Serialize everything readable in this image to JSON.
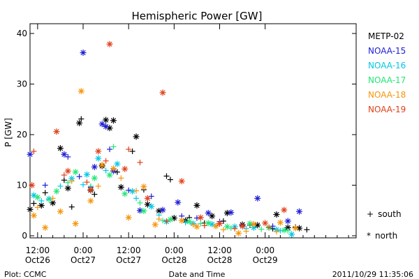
{
  "chart_data": {
    "type": "scatter",
    "title": "Hemispheric Power [GW]",
    "ylabel": "P [GW]",
    "xlabel": "Date and Time",
    "ylim": [
      0,
      42
    ],
    "xlim": [
      "2011-10-26 10:00",
      "2011-10-30 00:00"
    ],
    "yticks": [
      "0",
      "10",
      "20",
      "30",
      "40"
    ],
    "xticks": [
      {
        "time": "2011-10-26 12:00",
        "line1": "12:00",
        "line2": "Oct26"
      },
      {
        "time": "2011-10-27 00:00",
        "line1": "0:00",
        "line2": "Oct27"
      },
      {
        "time": "2011-10-27 12:00",
        "line1": "12:00",
        "line2": "Oct27"
      },
      {
        "time": "2011-10-28 00:00",
        "line1": "0:00",
        "line2": "Oct28"
      },
      {
        "time": "2011-10-28 12:00",
        "line1": "12:00",
        "line2": "Oct28"
      },
      {
        "time": "2011-10-29 00:00",
        "line1": "0:00",
        "line2": "Oct29"
      }
    ],
    "grid": false,
    "legend_position": "right",
    "hemisphere_legend": [
      {
        "symbol": "+",
        "label": "south"
      },
      {
        "symbol": "*",
        "label": "north"
      }
    ],
    "footer_left": "Plot: CCMC",
    "footer_right": "2011/10/29 11:35:06",
    "series": [
      {
        "name": "METP-02",
        "color": "#000000",
        "north": [
          [
            "2011-10-26 10:00",
            5.2
          ],
          [
            "2011-10-26 13:00",
            6.0
          ],
          [
            "2011-10-26 16:00",
            6.5
          ],
          [
            "2011-10-26 18:00",
            17.3
          ],
          [
            "2011-10-26 20:00",
            9.4
          ],
          [
            "2011-10-26 23:00",
            22.3
          ],
          [
            "2011-10-27 02:00",
            9.0
          ],
          [
            "2011-10-27 05:00",
            13.8
          ],
          [
            "2011-10-27 06:00",
            22.9
          ],
          [
            "2011-10-27 07:00",
            21.3
          ],
          [
            "2011-10-27 08:00",
            22.8
          ],
          [
            "2011-10-27 10:00",
            9.6
          ],
          [
            "2011-10-27 14:00",
            19.6
          ],
          [
            "2011-10-27 17:00",
            6.2
          ],
          [
            "2011-10-27 20:00",
            4.9
          ],
          [
            "2011-10-28 00:00",
            3.5
          ],
          [
            "2011-10-28 03:00",
            3.0
          ],
          [
            "2011-10-28 06:00",
            6.0
          ],
          [
            "2011-10-28 10:00",
            3.9
          ],
          [
            "2011-10-28 14:00",
            4.5
          ],
          [
            "2011-10-28 18:00",
            2.2
          ],
          [
            "2011-10-28 22:00",
            2.1
          ],
          [
            "2011-10-29 03:00",
            4.2
          ],
          [
            "2011-10-29 06:00",
            1.6
          ],
          [
            "2011-10-29 09:00",
            1.5
          ]
        ],
        "south": [
          [
            "2011-10-26 11:00",
            6.4
          ],
          [
            "2011-10-26 14:00",
            8.5
          ],
          [
            "2011-10-26 19:00",
            11.0
          ],
          [
            "2011-10-26 21:00",
            5.7
          ],
          [
            "2011-10-26 23:30",
            23.1
          ],
          [
            "2011-10-27 03:00",
            8.2
          ],
          [
            "2011-10-27 09:00",
            12.6
          ],
          [
            "2011-10-27 13:00",
            16.7
          ],
          [
            "2011-10-27 16:00",
            9.1
          ],
          [
            "2011-10-27 22:00",
            11.8
          ],
          [
            "2011-10-27 23:00",
            11.1
          ],
          [
            "2011-10-28 04:00",
            3.6
          ],
          [
            "2011-10-28 08:00",
            2.5
          ],
          [
            "2011-10-28 13:00",
            2.9
          ],
          [
            "2011-10-28 20:00",
            2.1
          ],
          [
            "2011-10-29 02:00",
            1.4
          ],
          [
            "2011-10-29 08:00",
            1.7
          ],
          [
            "2011-10-29 11:00",
            1.2
          ]
        ]
      },
      {
        "name": "NOAA-15",
        "color": "#1c1cd6",
        "north": [
          [
            "2011-10-26 10:00",
            16.1
          ],
          [
            "2011-10-26 19:00",
            16.1
          ],
          [
            "2011-10-27 00:00",
            36.2
          ],
          [
            "2011-10-27 03:00",
            13.6
          ],
          [
            "2011-10-27 05:00",
            22.1
          ],
          [
            "2011-10-27 06:00",
            21.6
          ],
          [
            "2011-10-27 08:00",
            12.8
          ],
          [
            "2011-10-27 15:00",
            5.0
          ],
          [
            "2011-10-27 21:00",
            5.1
          ],
          [
            "2011-10-28 01:00",
            6.6
          ],
          [
            "2011-10-28 09:00",
            4.5
          ],
          [
            "2011-10-28 15:00",
            4.6
          ],
          [
            "2011-10-28 22:00",
            7.4
          ],
          [
            "2011-10-29 06:00",
            2.9
          ],
          [
            "2011-10-29 09:00",
            4.8
          ]
        ],
        "south": [
          [
            "2011-10-26 14:00",
            10.0
          ],
          [
            "2011-10-26 20:00",
            15.6
          ],
          [
            "2011-10-26 23:00",
            11.7
          ],
          [
            "2011-10-27 02:00",
            9.6
          ],
          [
            "2011-10-27 07:00",
            17.1
          ],
          [
            "2011-10-27 12:00",
            9.0
          ],
          [
            "2011-10-27 18:00",
            7.8
          ],
          [
            "2011-10-28 02:00",
            3.9
          ],
          [
            "2011-10-28 06:00",
            3.5
          ],
          [
            "2011-10-28 12:00",
            2.8
          ],
          [
            "2011-10-28 18:00",
            2.0
          ],
          [
            "2011-10-29 02:00",
            1.9
          ]
        ]
      },
      {
        "name": "NOAA-16",
        "color": "#00c8e6",
        "north": [
          [
            "2011-10-26 11:00",
            8.0
          ],
          [
            "2011-10-26 15:00",
            7.3
          ],
          [
            "2011-10-26 21:00",
            11.3
          ],
          [
            "2011-10-27 01:00",
            12.1
          ],
          [
            "2011-10-27 04:00",
            15.3
          ],
          [
            "2011-10-27 09:00",
            14.2
          ],
          [
            "2011-10-27 13:00",
            8.8
          ],
          [
            "2011-10-27 18:00",
            5.8
          ],
          [
            "2011-10-27 22:00",
            2.8
          ],
          [
            "2011-10-28 05:00",
            2.4
          ],
          [
            "2011-10-28 10:00",
            2.3
          ],
          [
            "2011-10-28 16:00",
            1.8
          ],
          [
            "2011-10-28 21:00",
            1.6
          ],
          [
            "2011-10-29 03:00",
            1.2
          ],
          [
            "2011-10-29 07:00",
            0.3
          ]
        ],
        "south": [
          [
            "2011-10-26 13:00",
            6.9
          ],
          [
            "2011-10-26 18:00",
            9.8
          ],
          [
            "2011-10-27 00:00",
            10.1
          ],
          [
            "2011-10-27 06:00",
            12.9
          ],
          [
            "2011-10-27 14:00",
            7.4
          ],
          [
            "2011-10-27 20:00",
            4.1
          ],
          [
            "2011-10-28 03:00",
            2.6
          ],
          [
            "2011-10-28 11:00",
            1.9
          ],
          [
            "2011-10-28 19:00",
            1.4
          ],
          [
            "2011-10-29 04:00",
            1.0
          ]
        ]
      },
      {
        "name": "NOAA-17",
        "color": "#22e676",
        "north": [
          [
            "2011-10-26 12:00",
            7.6
          ],
          [
            "2011-10-26 17:00",
            8.8
          ],
          [
            "2011-10-26 22:00",
            12.6
          ],
          [
            "2011-10-27 03:00",
            11.4
          ],
          [
            "2011-10-27 07:00",
            12.0
          ],
          [
            "2011-10-27 11:00",
            8.3
          ],
          [
            "2011-10-27 16:00",
            4.9
          ],
          [
            "2011-10-27 23:00",
            3.2
          ],
          [
            "2011-10-28 04:00",
            2.8
          ],
          [
            "2011-10-28 09:00",
            2.5
          ],
          [
            "2011-10-28 14:00",
            1.8
          ],
          [
            "2011-10-28 20:00",
            2.4
          ],
          [
            "2011-10-29 01:00",
            1.6
          ],
          [
            "2011-10-29 05:00",
            1.1
          ]
        ],
        "south": [
          [
            "2011-10-26 15:00",
            7.1
          ],
          [
            "2011-10-26 20:00",
            10.5
          ],
          [
            "2011-10-27 02:00",
            9.8
          ],
          [
            "2011-10-27 08:00",
            17.6
          ],
          [
            "2011-10-27 15:00",
            6.5
          ],
          [
            "2011-10-27 21:00",
            3.0
          ],
          [
            "2011-10-28 07:00",
            2.4
          ],
          [
            "2011-10-28 15:00",
            1.5
          ],
          [
            "2011-10-28 23:00",
            1.3
          ],
          [
            "2011-10-29 06:00",
            1.0
          ]
        ]
      },
      {
        "name": "NOAA-18",
        "color": "#f5960a",
        "north": [
          [
            "2011-10-26 11:00",
            4.0
          ],
          [
            "2011-10-26 14:00",
            1.6
          ],
          [
            "2011-10-26 18:00",
            4.8
          ],
          [
            "2011-10-26 22:00",
            2.4
          ],
          [
            "2011-10-26 23:30",
            28.6
          ],
          [
            "2011-10-27 02:00",
            6.9
          ],
          [
            "2011-10-27 05:00",
            14.0
          ],
          [
            "2011-10-27 08:00",
            13.3
          ],
          [
            "2011-10-27 12:00",
            3.6
          ],
          [
            "2011-10-27 16:00",
            9.7
          ],
          [
            "2011-10-27 19:00",
            2.2
          ],
          [
            "2011-10-28 02:00",
            3.0
          ],
          [
            "2011-10-28 06:00",
            1.8
          ],
          [
            "2011-10-28 11:00",
            1.9
          ],
          [
            "2011-10-28 17:00",
            0.5
          ],
          [
            "2011-10-28 21:00",
            2.3
          ],
          [
            "2011-10-29 04:00",
            2.6
          ],
          [
            "2011-10-29 08:00",
            1.5
          ]
        ],
        "south": [
          [
            "2011-10-26 12:00",
            5.6
          ],
          [
            "2011-10-26 16:00",
            7.4
          ],
          [
            "2011-10-26 21:00",
            10.8
          ],
          [
            "2011-10-27 04:00",
            9.8
          ],
          [
            "2011-10-27 10:00",
            11.4
          ],
          [
            "2011-10-27 14:00",
            8.9
          ],
          [
            "2011-10-27 20:00",
            3.3
          ],
          [
            "2011-10-28 05:00",
            2.2
          ],
          [
            "2011-10-28 13:00",
            1.2
          ],
          [
            "2011-10-28 19:00",
            0.9
          ],
          [
            "2011-10-29 03:00",
            0.8
          ]
        ]
      },
      {
        "name": "NOAA-19",
        "color": "#e0401a",
        "north": [
          [
            "2011-10-26 10:30",
            10.0
          ],
          [
            "2011-10-26 17:00",
            20.6
          ],
          [
            "2011-10-26 20:00",
            12.8
          ],
          [
            "2011-10-27 02:00",
            9.1
          ],
          [
            "2011-10-27 04:00",
            16.7
          ],
          [
            "2011-10-27 07:00",
            37.9
          ],
          [
            "2011-10-27 11:00",
            13.2
          ],
          [
            "2011-10-27 17:00",
            7.4
          ],
          [
            "2011-10-27 21:00",
            28.3
          ],
          [
            "2011-10-28 02:00",
            10.8
          ],
          [
            "2011-10-28 07:00",
            3.6
          ],
          [
            "2011-10-28 12:00",
            2.4
          ],
          [
            "2011-10-28 18:00",
            1.9
          ],
          [
            "2011-10-29 00:00",
            2.5
          ],
          [
            "2011-10-29 05:00",
            5.1
          ]
        ],
        "south": [
          [
            "2011-10-26 11:00",
            16.7
          ],
          [
            "2011-10-26 19:00",
            12.0
          ],
          [
            "2011-10-27 01:00",
            10.6
          ],
          [
            "2011-10-27 06:00",
            14.8
          ],
          [
            "2011-10-27 12:00",
            17.1
          ],
          [
            "2011-10-27 15:00",
            14.5
          ],
          [
            "2011-10-27 22:00",
            2.9
          ],
          [
            "2011-10-28 08:00",
            2.0
          ],
          [
            "2011-10-28 16:00",
            1.4
          ],
          [
            "2011-10-29 01:00",
            1.7
          ]
        ]
      }
    ]
  }
}
